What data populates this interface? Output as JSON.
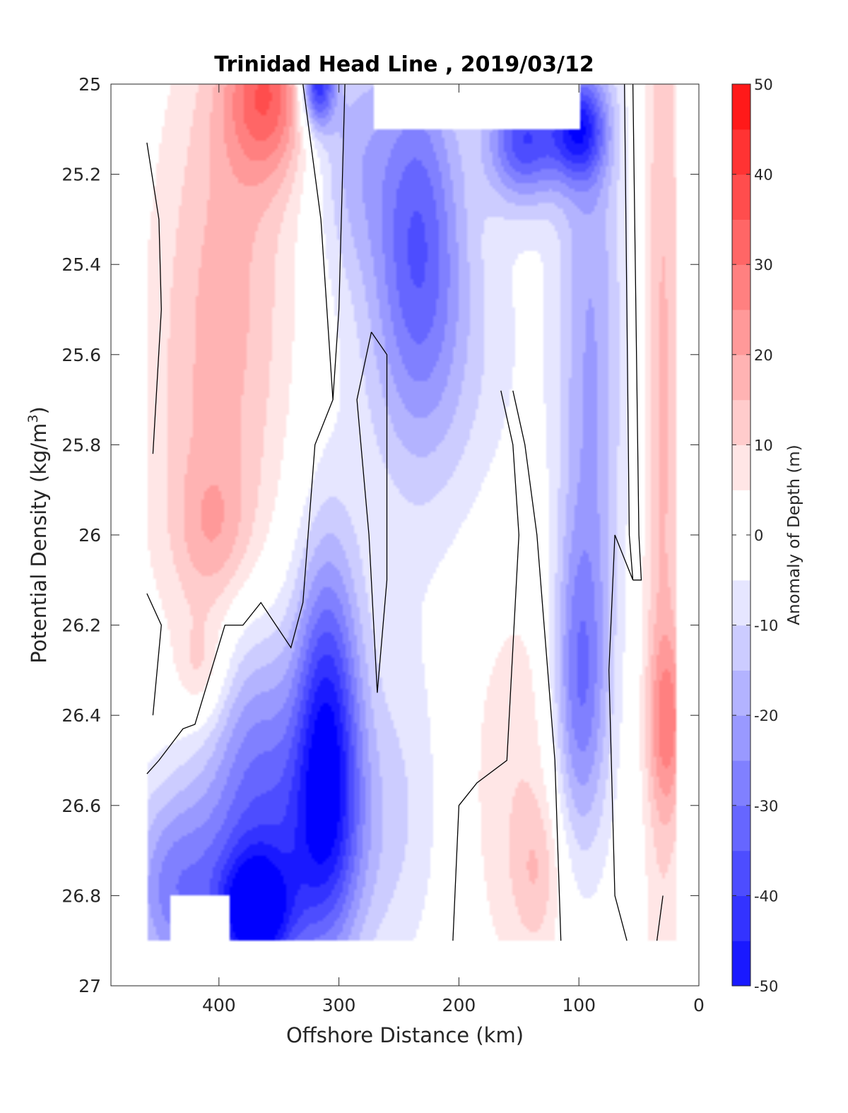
{
  "chart_data": {
    "type": "heatmap",
    "subtype": "filled-contour section",
    "title": "Trinidad Head Line , 2019/03/12",
    "xlabel": "Offshore Distance (km)",
    "ylabel_main": "Potential Density (kg/m",
    "ylabel_sup": "3",
    "ylabel_tail": ")",
    "colorbar_label": "Anomaly of Depth (m)",
    "x_axis": {
      "lim": [
        0,
        490
      ],
      "reversed": true,
      "ticks": [
        400,
        300,
        200,
        100,
        0
      ],
      "tick_labels": [
        "400",
        "300",
        "200",
        "100",
        "0"
      ]
    },
    "y_axis": {
      "lim": [
        25,
        27
      ],
      "reversed": true,
      "ticks": [
        25,
        25.2,
        25.4,
        25.6,
        25.8,
        26,
        26.2,
        26.4,
        26.6,
        26.8,
        27
      ],
      "tick_labels": [
        "25",
        "25.2",
        "25.4",
        "25.6",
        "25.8",
        "26",
        "26.2",
        "26.4",
        "26.6",
        "26.8",
        "27"
      ]
    },
    "colorbar": {
      "lim": [
        -50,
        50
      ],
      "step": 5,
      "tick_values": [
        50,
        40,
        30,
        20,
        10,
        0,
        -10,
        -20,
        -30,
        -40,
        -50
      ],
      "tick_labels": [
        "50",
        "40",
        "30",
        "20",
        "10",
        "0",
        "-10",
        "-20",
        "-30",
        "-40",
        "-50"
      ],
      "positive_color": "#ff0000",
      "negative_color": "#0000ff",
      "neutral_color": "#ffffff"
    },
    "zero_contour_color": "#000000",
    "grid": false,
    "data_extent": {
      "x": [
        20,
        460
      ],
      "density": [
        25,
        26.9
      ]
    },
    "no_data_regions": [
      {
        "x": [
          100,
          270
        ],
        "density": [
          25,
          25.1
        ]
      },
      {
        "x": [
          390,
          440
        ],
        "density": [
          26.8,
          26.9
        ]
      }
    ],
    "features": [
      {
        "x": 360,
        "density": 25.02,
        "sx": 24,
        "sy": 0.13,
        "anomaly": 28
      },
      {
        "x": 390,
        "density": 25.25,
        "sx": 40,
        "sy": 0.35,
        "anomaly": 12
      },
      {
        "x": 405,
        "density": 25.8,
        "sx": 42,
        "sy": 0.35,
        "anomaly": 12
      },
      {
        "x": 405,
        "density": 26.0,
        "sx": 22,
        "sy": 0.12,
        "anomaly": 10
      },
      {
        "x": 415,
        "density": 26.3,
        "sx": 14,
        "sy": 0.08,
        "anomaly": 10
      },
      {
        "x": 30,
        "density": 25.7,
        "sx": 12,
        "sy": 1.0,
        "anomaly": 16
      },
      {
        "x": 25,
        "density": 26.42,
        "sx": 12,
        "sy": 0.14,
        "anomaly": 18
      },
      {
        "x": 150,
        "density": 26.55,
        "sx": 35,
        "sy": 0.35,
        "anomaly": 9
      },
      {
        "x": 135,
        "density": 26.75,
        "sx": 14,
        "sy": 0.12,
        "anomaly": 9
      },
      {
        "x": 318,
        "density": 25.0,
        "sx": 10,
        "sy": 0.07,
        "anomaly": -45
      },
      {
        "x": 290,
        "density": 25.15,
        "sx": 22,
        "sy": 0.2,
        "anomaly": -14
      },
      {
        "x": 235,
        "density": 25.3,
        "sx": 26,
        "sy": 0.3,
        "anomaly": -28
      },
      {
        "x": 220,
        "density": 25.6,
        "sx": 50,
        "sy": 0.3,
        "anomaly": -12
      },
      {
        "x": 145,
        "density": 25.12,
        "sx": 22,
        "sy": 0.1,
        "anomaly": -38
      },
      {
        "x": 100,
        "density": 25.1,
        "sx": 16,
        "sy": 0.08,
        "anomaly": -35
      },
      {
        "x": 90,
        "density": 25.6,
        "sx": 20,
        "sy": 0.6,
        "anomaly": -20
      },
      {
        "x": 100,
        "density": 26.35,
        "sx": 16,
        "sy": 0.25,
        "anomaly": -25
      },
      {
        "x": 310,
        "density": 26.45,
        "sx": 20,
        "sy": 0.3,
        "anomaly": -45
      },
      {
        "x": 370,
        "density": 26.85,
        "sx": 22,
        "sy": 0.1,
        "anomaly": -45
      },
      {
        "x": 360,
        "density": 26.7,
        "sx": 55,
        "sy": 0.2,
        "anomaly": -28
      },
      {
        "x": 370,
        "density": 26.4,
        "sx": 25,
        "sy": 0.2,
        "anomaly": -16
      },
      {
        "x": 250,
        "density": 26.55,
        "sx": 30,
        "sy": 0.3,
        "anomaly": -8
      },
      {
        "x": 440,
        "density": 26.8,
        "sx": 25,
        "sy": 0.15,
        "anomaly": -20
      }
    ],
    "zero_contours": [
      [
        [
          460,
          25.13
        ],
        [
          450,
          25.3
        ],
        [
          448,
          25.5
        ],
        [
          455,
          25.82
        ]
      ],
      [
        [
          460,
          26.13
        ],
        [
          448,
          26.2
        ],
        [
          455,
          26.4
        ]
      ],
      [
        [
          460,
          26.53
        ],
        [
          450,
          26.5
        ],
        [
          430,
          26.43
        ],
        [
          420,
          26.42
        ],
        [
          395,
          26.2
        ],
        [
          380,
          26.2
        ],
        [
          365,
          26.15
        ],
        [
          340,
          26.25
        ],
        [
          330,
          26.15
        ],
        [
          320,
          25.8
        ],
        [
          305,
          25.7
        ],
        [
          300,
          25.5
        ],
        [
          295,
          25.0
        ]
      ],
      [
        [
          330,
          25.0
        ],
        [
          315,
          25.3
        ],
        [
          305,
          25.7
        ]
      ],
      [
        [
          273,
          25.55
        ],
        [
          285,
          25.7
        ],
        [
          275,
          26.0
        ],
        [
          268,
          26.35
        ],
        [
          260,
          26.1
        ],
        [
          260,
          25.6
        ],
        [
          273,
          25.55
        ]
      ],
      [
        [
          165,
          25.68
        ],
        [
          155,
          25.8
        ],
        [
          150,
          26.0
        ],
        [
          160,
          26.5
        ],
        [
          185,
          26.55
        ],
        [
          200,
          26.6
        ],
        [
          205,
          26.9
        ]
      ],
      [
        [
          155,
          25.68
        ],
        [
          145,
          25.8
        ],
        [
          135,
          26.0
        ],
        [
          120,
          26.5
        ],
        [
          115,
          26.9
        ]
      ],
      [
        [
          62,
          25.0
        ],
        [
          60,
          25.5
        ],
        [
          58,
          26.0
        ],
        [
          55,
          26.1
        ],
        [
          70,
          26.0
        ],
        [
          75,
          26.3
        ],
        [
          70,
          26.8
        ],
        [
          60,
          26.9
        ]
      ],
      [
        [
          55,
          25.0
        ],
        [
          50,
          26.0
        ],
        [
          48,
          26.1
        ],
        [
          55,
          26.1
        ]
      ],
      [
        [
          30,
          26.8
        ],
        [
          35,
          26.9
        ]
      ]
    ]
  }
}
